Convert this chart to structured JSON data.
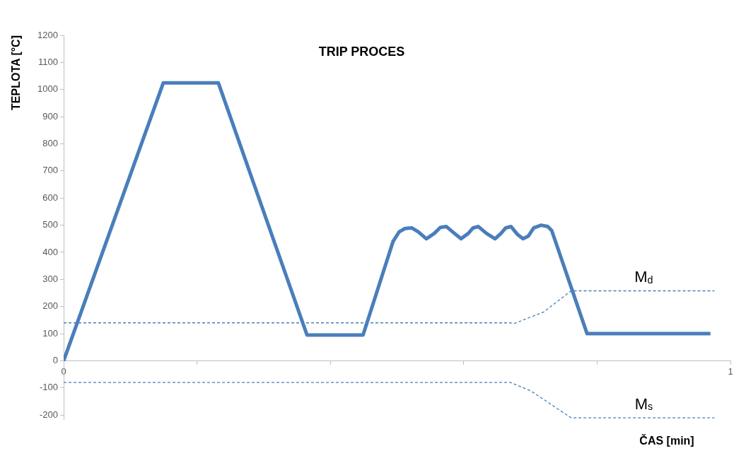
{
  "chart_data": {
    "type": "line",
    "title": "TRIP PROCES",
    "xlabel": "ČAS [min]",
    "ylabel": "TEPLOTA [°C]",
    "xlim": [
      0,
      1
    ],
    "xticks": [
      0,
      {
        "value": 0.2,
        "label": null
      },
      {
        "value": 0.4,
        "label": null
      },
      {
        "value": 0.6,
        "label": null
      },
      {
        "value": 0.8,
        "label": null
      },
      1
    ],
    "ylim": [
      -215,
      1200
    ],
    "yticks": [
      -200,
      -100,
      0,
      100,
      200,
      300,
      400,
      500,
      600,
      700,
      800,
      900,
      1000,
      1100,
      1200
    ],
    "grid": false,
    "legend": false,
    "marker": "none",
    "series": [
      {
        "color": "#4a7ebb",
        "line_style": "solid",
        "x": [
          0,
          0.1495,
          0.232,
          0.365,
          0.449,
          0.494,
          0.503,
          0.512,
          0.522,
          0.532,
          0.544,
          0.556,
          0.565,
          0.574,
          0.586,
          0.596,
          0.607,
          0.614,
          0.622,
          0.634,
          0.647,
          0.656,
          0.663,
          0.671,
          0.681,
          0.689,
          0.697,
          0.705,
          0.716,
          0.726,
          0.732,
          0.785,
          0.97
        ],
        "values": [
          0,
          1025,
          1025,
          95,
          95,
          440,
          475,
          488,
          490,
          475,
          450,
          470,
          492,
          495,
          470,
          450,
          470,
          490,
          495,
          470,
          450,
          470,
          490,
          495,
          465,
          450,
          460,
          490,
          500,
          495,
          480,
          100,
          100
        ]
      },
      {
        "color": "#4a7ebb",
        "line_style": "dashed",
        "x": [
          0,
          0.67,
          0.675,
          0.72,
          0.761,
          0.976
        ],
        "values": [
          140,
          140,
          137,
          180,
          258,
          258
        ]
      },
      {
        "color": "#4a7ebb",
        "line_style": "dashed",
        "x": [
          0,
          0.67,
          0.7,
          0.761,
          0.976
        ],
        "values": [
          -80,
          -80,
          -110,
          -210,
          -210
        ]
      }
    ],
    "annotations": [
      {
        "text": "M$_{d}$",
        "x": 0.87,
        "y": 258
      },
      {
        "text": "M$_{s}$",
        "x": 0.87,
        "y": -210
      }
    ]
  }
}
